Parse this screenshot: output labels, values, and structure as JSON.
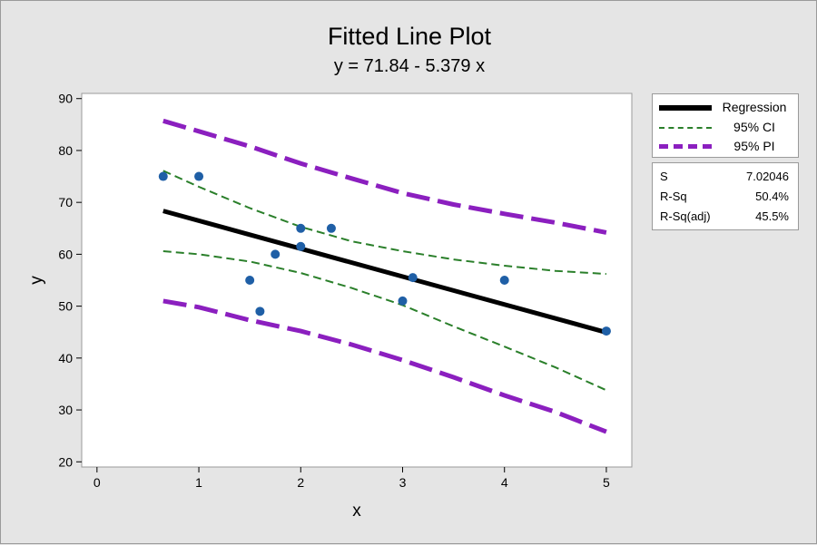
{
  "chart_data": {
    "type": "scatter",
    "title": "Fitted Line Plot",
    "subtitle": "y = 71.84 - 5.379 x",
    "xlabel": "x",
    "ylabel": "y",
    "xlim": [
      -0.15,
      5.25
    ],
    "ylim": [
      19,
      91
    ],
    "xticks": [
      0,
      1,
      2,
      3,
      4,
      5
    ],
    "yticks": [
      20,
      30,
      40,
      50,
      60,
      70,
      80,
      90
    ],
    "points": [
      {
        "x": 0.65,
        "y": 75
      },
      {
        "x": 1.0,
        "y": 75
      },
      {
        "x": 1.5,
        "y": 55
      },
      {
        "x": 1.6,
        "y": 49
      },
      {
        "x": 1.75,
        "y": 60
      },
      {
        "x": 2.0,
        "y": 65
      },
      {
        "x": 2.0,
        "y": 61.5
      },
      {
        "x": 2.3,
        "y": 65
      },
      {
        "x": 3.0,
        "y": 51
      },
      {
        "x": 3.1,
        "y": 55.5
      },
      {
        "x": 4.0,
        "y": 55
      },
      {
        "x": 5.0,
        "y": 45.2
      }
    ],
    "regression": {
      "intercept": 71.84,
      "slope": -5.379,
      "x_range": [
        0.65,
        5.0
      ]
    },
    "ci_upper": [
      [
        0.65,
        76.1
      ],
      [
        1.0,
        73.0
      ],
      [
        1.5,
        68.9
      ],
      [
        2.0,
        65.3
      ],
      [
        2.5,
        62.5
      ],
      [
        3.0,
        60.6
      ],
      [
        3.5,
        59.0
      ],
      [
        4.0,
        57.8
      ],
      [
        4.5,
        56.8
      ],
      [
        5.0,
        56.2
      ]
    ],
    "ci_lower": [
      [
        0.65,
        60.6
      ],
      [
        1.0,
        60.0
      ],
      [
        1.5,
        58.6
      ],
      [
        2.0,
        56.4
      ],
      [
        2.5,
        53.5
      ],
      [
        3.0,
        50.2
      ],
      [
        3.5,
        46.1
      ],
      [
        4.0,
        42.2
      ],
      [
        4.5,
        38.2
      ],
      [
        5.0,
        33.8
      ]
    ],
    "pi_upper": [
      [
        0.65,
        85.7
      ],
      [
        1.0,
        83.7
      ],
      [
        1.5,
        80.8
      ],
      [
        2.0,
        77.5
      ],
      [
        2.5,
        74.6
      ],
      [
        3.0,
        71.8
      ],
      [
        3.5,
        69.6
      ],
      [
        4.0,
        67.8
      ],
      [
        4.5,
        66.1
      ],
      [
        5.0,
        64.2
      ]
    ],
    "pi_lower": [
      [
        0.65,
        51.0
      ],
      [
        1.0,
        49.8
      ],
      [
        1.5,
        47.3
      ],
      [
        2.0,
        45.2
      ],
      [
        2.5,
        42.6
      ],
      [
        3.0,
        39.6
      ],
      [
        3.5,
        36.3
      ],
      [
        4.0,
        32.8
      ],
      [
        4.5,
        29.6
      ],
      [
        5.0,
        25.8
      ]
    ],
    "legend": [
      {
        "key": "regression",
        "label": "Regression"
      },
      {
        "key": "ci",
        "label": "95% CI"
      },
      {
        "key": "pi",
        "label": "95% PI"
      }
    ],
    "stats": [
      {
        "name": "S",
        "value": "7.02046"
      },
      {
        "name": "R-Sq",
        "value": "50.4%"
      },
      {
        "name": "R-Sq(adj)",
        "value": "45.5%"
      }
    ],
    "colors": {
      "regression": "#000000",
      "ci": "#2a7f2a",
      "pi": "#8b1fbf",
      "points": "#1f5fa6",
      "plot_bg": "#ffffff",
      "frame_bg": "#e5e5e5"
    }
  }
}
